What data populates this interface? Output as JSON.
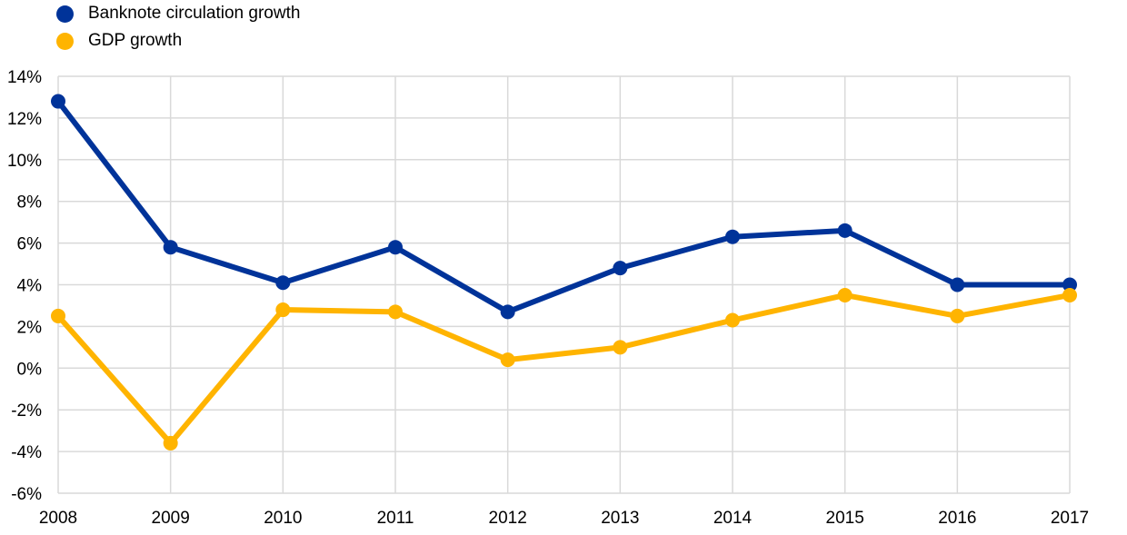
{
  "chart_data": {
    "type": "line",
    "title": "",
    "xlabel": "",
    "ylabel": "",
    "categories": [
      "2008",
      "2009",
      "2010",
      "2011",
      "2012",
      "2013",
      "2014",
      "2015",
      "2016",
      "2017"
    ],
    "ylim": [
      -6,
      14
    ],
    "yticks": [
      -6,
      -4,
      -2,
      0,
      2,
      4,
      6,
      8,
      10,
      12,
      14
    ],
    "ytick_labels": [
      "-6%",
      "-4%",
      "-2%",
      "0%",
      "2%",
      "4%",
      "6%",
      "8%",
      "10%",
      "12%",
      "14%"
    ],
    "grid": true,
    "legend_position": "top-left",
    "series": [
      {
        "name": "Banknote circulation growth",
        "color": "#003399",
        "values": [
          12.8,
          5.8,
          4.1,
          5.8,
          2.7,
          4.8,
          6.3,
          6.6,
          4.0,
          4.0
        ]
      },
      {
        "name": "GDP growth",
        "color": "#FFB400",
        "values": [
          2.5,
          -3.6,
          2.8,
          2.7,
          0.4,
          1.0,
          2.3,
          3.5,
          2.5,
          3.5
        ]
      }
    ]
  }
}
